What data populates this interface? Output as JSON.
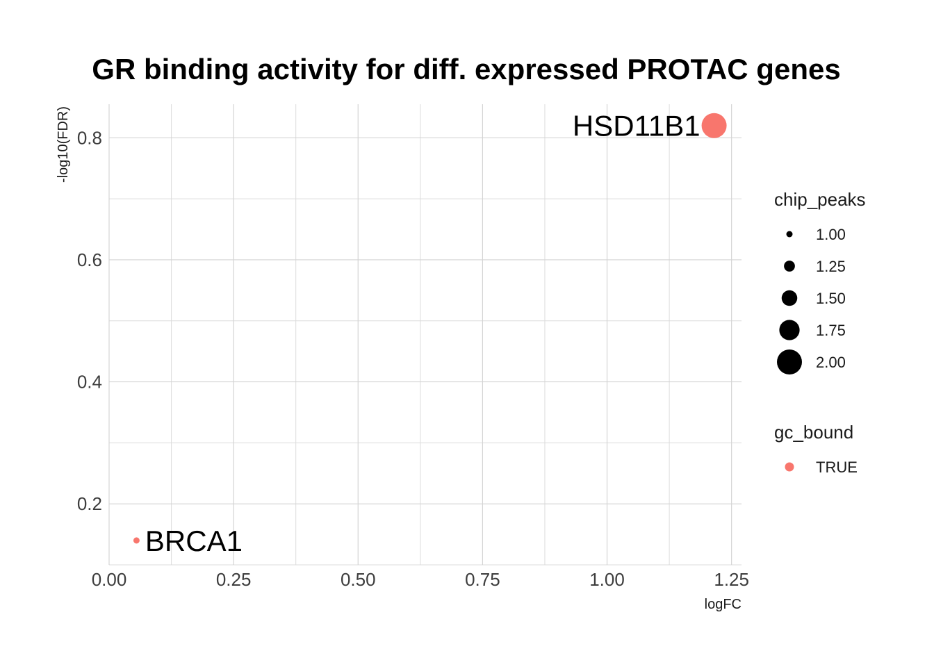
{
  "chart_data": {
    "type": "scatter",
    "title": "GR binding activity for diff. expressed PROTAC genes",
    "xlabel": "logFC",
    "ylabel": "-log10(FDR)",
    "xlim": [
      0.0,
      1.27
    ],
    "ylim": [
      0.1,
      0.855
    ],
    "xticks": [
      0.0,
      0.25,
      0.5,
      0.75,
      1.0,
      1.25
    ],
    "xtick_labels": [
      "0.00",
      "0.25",
      "0.50",
      "0.75",
      "1.00",
      "1.25"
    ],
    "yticks": [
      0.2,
      0.4,
      0.6,
      0.8
    ],
    "ytick_labels": [
      "0.2",
      "0.4",
      "0.6",
      "0.8"
    ],
    "grid": true,
    "points": [
      {
        "label": "BRCA1",
        "x": 0.055,
        "y": 0.14,
        "chip_peaks": 1,
        "gc_bound": "TRUE",
        "color": "#F8766D"
      },
      {
        "label": "HSD11B1",
        "x": 1.215,
        "y": 0.82,
        "chip_peaks": 2,
        "gc_bound": "TRUE",
        "color": "#F8766D"
      }
    ],
    "legend_size": {
      "title": "chip_peaks",
      "entries": [
        {
          "label": "1.00",
          "value": 1.0
        },
        {
          "label": "1.25",
          "value": 1.25
        },
        {
          "label": "1.50",
          "value": 1.5
        },
        {
          "label": "1.75",
          "value": 1.75
        },
        {
          "label": "2.00",
          "value": 2.0
        }
      ]
    },
    "legend_color": {
      "title": "gc_bound",
      "entries": [
        {
          "label": "TRUE",
          "color": "#F8766D"
        }
      ]
    },
    "legend_position": "right"
  }
}
